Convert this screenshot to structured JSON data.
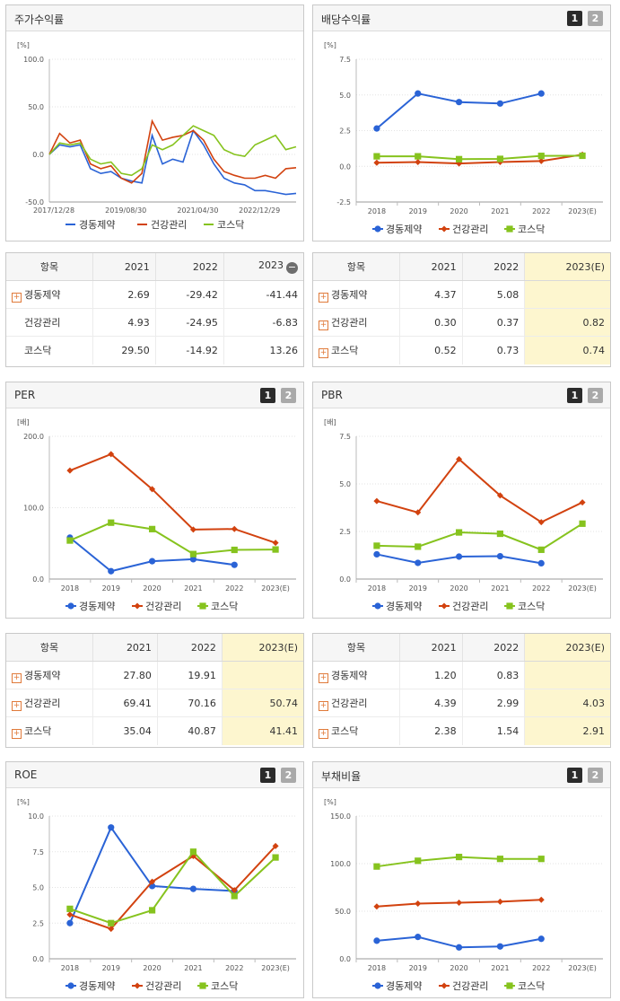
{
  "colors": {
    "s1": "#2a63d6",
    "s2": "#d2420f",
    "s3": "#86c31e"
  },
  "legend": [
    "경동제약",
    "건강관리",
    "코스닥"
  ],
  "plus_glyph": "+",
  "minus_glyph": "−",
  "pager": [
    "1",
    "2"
  ],
  "panels": {
    "returns": {
      "title": "주가수익률",
      "chart_data": {
        "type": "line",
        "unit": "[%]",
        "ylim": [
          -50,
          100
        ],
        "yticks": [
          "100.0",
          "50.0",
          "0.0",
          "-50.0"
        ],
        "xticks": [
          "2017/12/28",
          "2019/08/30",
          "2021/04/30",
          "2022/12/29"
        ],
        "x": [
          "2017-12",
          "2018-03",
          "2018-06",
          "2018-09",
          "2018-12",
          "2019-03",
          "2019-06",
          "2019-09",
          "2019-12",
          "2020-03",
          "2020-06",
          "2020-09",
          "2020-12",
          "2021-03",
          "2021-06",
          "2021-09",
          "2021-12",
          "2022-03",
          "2022-06",
          "2022-09",
          "2022-12",
          "2023-03",
          "2023-06",
          "2023-09",
          "2023-11"
        ],
        "series": [
          {
            "name": "경동제약",
            "values": [
              0,
              10,
              8,
              10,
              -15,
              -20,
              -18,
              -25,
              -28,
              -30,
              20,
              -10,
              -5,
              -8,
              25,
              10,
              -10,
              -25,
              -30,
              -32,
              -38,
              -38,
              -40,
              -42,
              -41
            ]
          },
          {
            "name": "건강관리",
            "values": [
              0,
              22,
              12,
              15,
              -10,
              -15,
              -12,
              -25,
              -30,
              -20,
              35,
              15,
              18,
              20,
              25,
              15,
              -5,
              -18,
              -22,
              -25,
              -25,
              -22,
              -25,
              -15,
              -14
            ]
          },
          {
            "name": "코스닥",
            "values": [
              0,
              12,
              10,
              12,
              -5,
              -10,
              -8,
              -20,
              -22,
              -15,
              10,
              5,
              10,
              20,
              30,
              25,
              20,
              5,
              0,
              -2,
              10,
              15,
              20,
              5,
              8
            ]
          }
        ]
      }
    },
    "dividend": {
      "title": "배당수익률",
      "chart_data": {
        "type": "line",
        "unit": "[%]",
        "ylim": [
          -2.5,
          7.5
        ],
        "yticks": [
          "7.5",
          "5.0",
          "2.5",
          "0.0",
          "-2.5"
        ],
        "categories": [
          "2018",
          "2019",
          "2020",
          "2021",
          "2022",
          "2023(E)"
        ],
        "series": [
          {
            "name": "경동제약",
            "values": [
              2.65,
              5.1,
              4.5,
              4.4,
              5.1,
              null
            ]
          },
          {
            "name": "건강관리",
            "values": [
              0.25,
              0.3,
              0.2,
              0.3,
              0.37,
              0.82
            ]
          },
          {
            "name": "코스닥",
            "values": [
              0.7,
              0.7,
              0.5,
              0.52,
              0.73,
              0.74
            ]
          }
        ]
      }
    },
    "per": {
      "title": "PER",
      "chart_data": {
        "type": "line",
        "unit": "[배]",
        "ylim": [
          0,
          200
        ],
        "yticks": [
          "200.0",
          "100.0",
          "0.0"
        ],
        "categories": [
          "2018",
          "2019",
          "2020",
          "2021",
          "2022",
          "2023(E)"
        ],
        "series": [
          {
            "name": "경동제약",
            "values": [
              58,
              11,
              25,
              27.8,
              19.91,
              null
            ]
          },
          {
            "name": "건강관리",
            "values": [
              152,
              175,
              126,
              69.41,
              70.16,
              50.74
            ]
          },
          {
            "name": "코스닥",
            "values": [
              54,
              79,
              70,
              35.04,
              40.87,
              41.41
            ]
          }
        ]
      }
    },
    "pbr": {
      "title": "PBR",
      "chart_data": {
        "type": "line",
        "unit": "[배]",
        "ylim": [
          0,
          7.5
        ],
        "yticks": [
          "7.5",
          "5.0",
          "2.5",
          "0.0"
        ],
        "categories": [
          "2018",
          "2019",
          "2020",
          "2021",
          "2022",
          "2023(E)"
        ],
        "series": [
          {
            "name": "경동제약",
            "values": [
              1.3,
              0.85,
              1.18,
              1.2,
              0.83,
              null
            ]
          },
          {
            "name": "건강관리",
            "values": [
              4.1,
              3.5,
              6.3,
              4.39,
              2.99,
              4.03
            ]
          },
          {
            "name": "코스닥",
            "values": [
              1.75,
              1.7,
              2.45,
              2.38,
              1.54,
              2.91
            ]
          }
        ]
      }
    },
    "roe": {
      "title": "ROE",
      "chart_data": {
        "type": "line",
        "unit": "[%]",
        "ylim": [
          0,
          10
        ],
        "yticks": [
          "10.0",
          "7.5",
          "5.0",
          "2.5",
          "0.0"
        ],
        "categories": [
          "2018",
          "2019",
          "2020",
          "2021",
          "2022",
          "2023(E)"
        ],
        "series": [
          {
            "name": "경동제약",
            "values": [
              2.5,
              9.2,
              5.1,
              4.9,
              4.75,
              null
            ]
          },
          {
            "name": "건강관리",
            "values": [
              3.1,
              2.1,
              5.4,
              7.2,
              4.8,
              7.9
            ]
          },
          {
            "name": "코스닥",
            "values": [
              3.5,
              2.5,
              3.4,
              7.5,
              4.4,
              7.1
            ]
          }
        ]
      }
    },
    "debt": {
      "title": "부채비율",
      "chart_data": {
        "type": "line",
        "unit": "[%]",
        "ylim": [
          0,
          150
        ],
        "yticks": [
          "150.0",
          "100.0",
          "50.0",
          "0.0"
        ],
        "categories": [
          "2018",
          "2019",
          "2020",
          "2021",
          "2022",
          "2023(E)"
        ],
        "series": [
          {
            "name": "경동제약",
            "values": [
              19,
              23,
              12,
              13,
              21,
              null
            ]
          },
          {
            "name": "건강관리",
            "values": [
              55,
              58,
              59,
              60,
              62,
              null
            ]
          },
          {
            "name": "코스닥",
            "values": [
              97,
              103,
              107,
              105,
              105,
              null
            ]
          }
        ]
      }
    }
  },
  "tables": {
    "returns": {
      "headers": [
        "항목",
        "2021",
        "2022",
        "2023"
      ],
      "rows": [
        {
          "name": "경동제약",
          "plus": true,
          "cells": [
            "2.69",
            "-29.42",
            "-41.44"
          ]
        },
        {
          "name": "건강관리",
          "plus": false,
          "cells": [
            "4.93",
            "-24.95",
            "-6.83"
          ]
        },
        {
          "name": "코스닥",
          "plus": false,
          "cells": [
            "29.50",
            "-14.92",
            "13.26"
          ]
        }
      ]
    },
    "dividend": {
      "headers": [
        "항목",
        "2021",
        "2022",
        "2023(E)"
      ],
      "rows": [
        {
          "name": "경동제약",
          "plus": true,
          "cells": [
            "4.37",
            "5.08",
            ""
          ]
        },
        {
          "name": "건강관리",
          "plus": true,
          "cells": [
            "0.30",
            "0.37",
            "0.82"
          ]
        },
        {
          "name": "코스닥",
          "plus": true,
          "cells": [
            "0.52",
            "0.73",
            "0.74"
          ]
        }
      ]
    },
    "per": {
      "headers": [
        "항목",
        "2021",
        "2022",
        "2023(E)"
      ],
      "rows": [
        {
          "name": "경동제약",
          "plus": true,
          "cells": [
            "27.80",
            "19.91",
            ""
          ]
        },
        {
          "name": "건강관리",
          "plus": true,
          "cells": [
            "69.41",
            "70.16",
            "50.74"
          ]
        },
        {
          "name": "코스닥",
          "plus": true,
          "cells": [
            "35.04",
            "40.87",
            "41.41"
          ]
        }
      ]
    },
    "pbr": {
      "headers": [
        "항목",
        "2021",
        "2022",
        "2023(E)"
      ],
      "rows": [
        {
          "name": "경동제약",
          "plus": true,
          "cells": [
            "1.20",
            "0.83",
            ""
          ]
        },
        {
          "name": "건강관리",
          "plus": true,
          "cells": [
            "4.39",
            "2.99",
            "4.03"
          ]
        },
        {
          "name": "코스닥",
          "plus": true,
          "cells": [
            "2.38",
            "1.54",
            "2.91"
          ]
        }
      ]
    }
  }
}
